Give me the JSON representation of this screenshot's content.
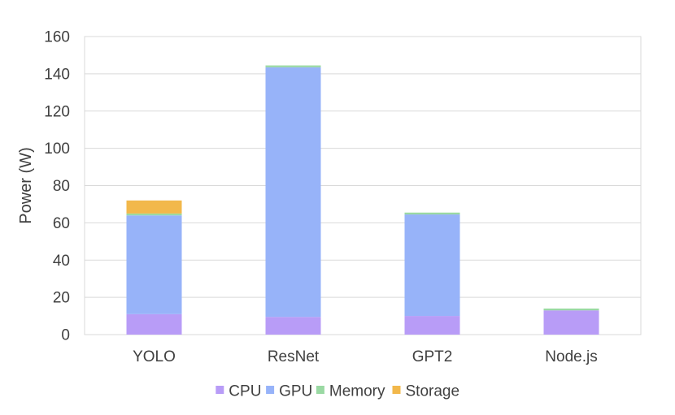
{
  "chart_data": {
    "type": "bar",
    "stacked": true,
    "title": "",
    "xlabel": "",
    "ylabel": "Power (W)",
    "ylim": [
      0,
      160
    ],
    "yticks": [
      0,
      20,
      40,
      60,
      80,
      100,
      120,
      140,
      160
    ],
    "grid": true,
    "legend_position": "bottom",
    "categories": [
      "YOLO",
      "ResNet",
      "GPT2",
      "Node.js"
    ],
    "series": [
      {
        "name": "CPU",
        "color": "#b89cf7",
        "values": [
          11,
          9.5,
          10,
          13
        ]
      },
      {
        "name": "GPU",
        "color": "#97b3f9",
        "values": [
          53,
          134,
          54.5,
          0
        ]
      },
      {
        "name": "Memory",
        "color": "#9ad9a3",
        "values": [
          1,
          1,
          1,
          1
        ]
      },
      {
        "name": "Storage",
        "color": "#f2b84b",
        "values": [
          7,
          0,
          0,
          0
        ]
      }
    ]
  }
}
